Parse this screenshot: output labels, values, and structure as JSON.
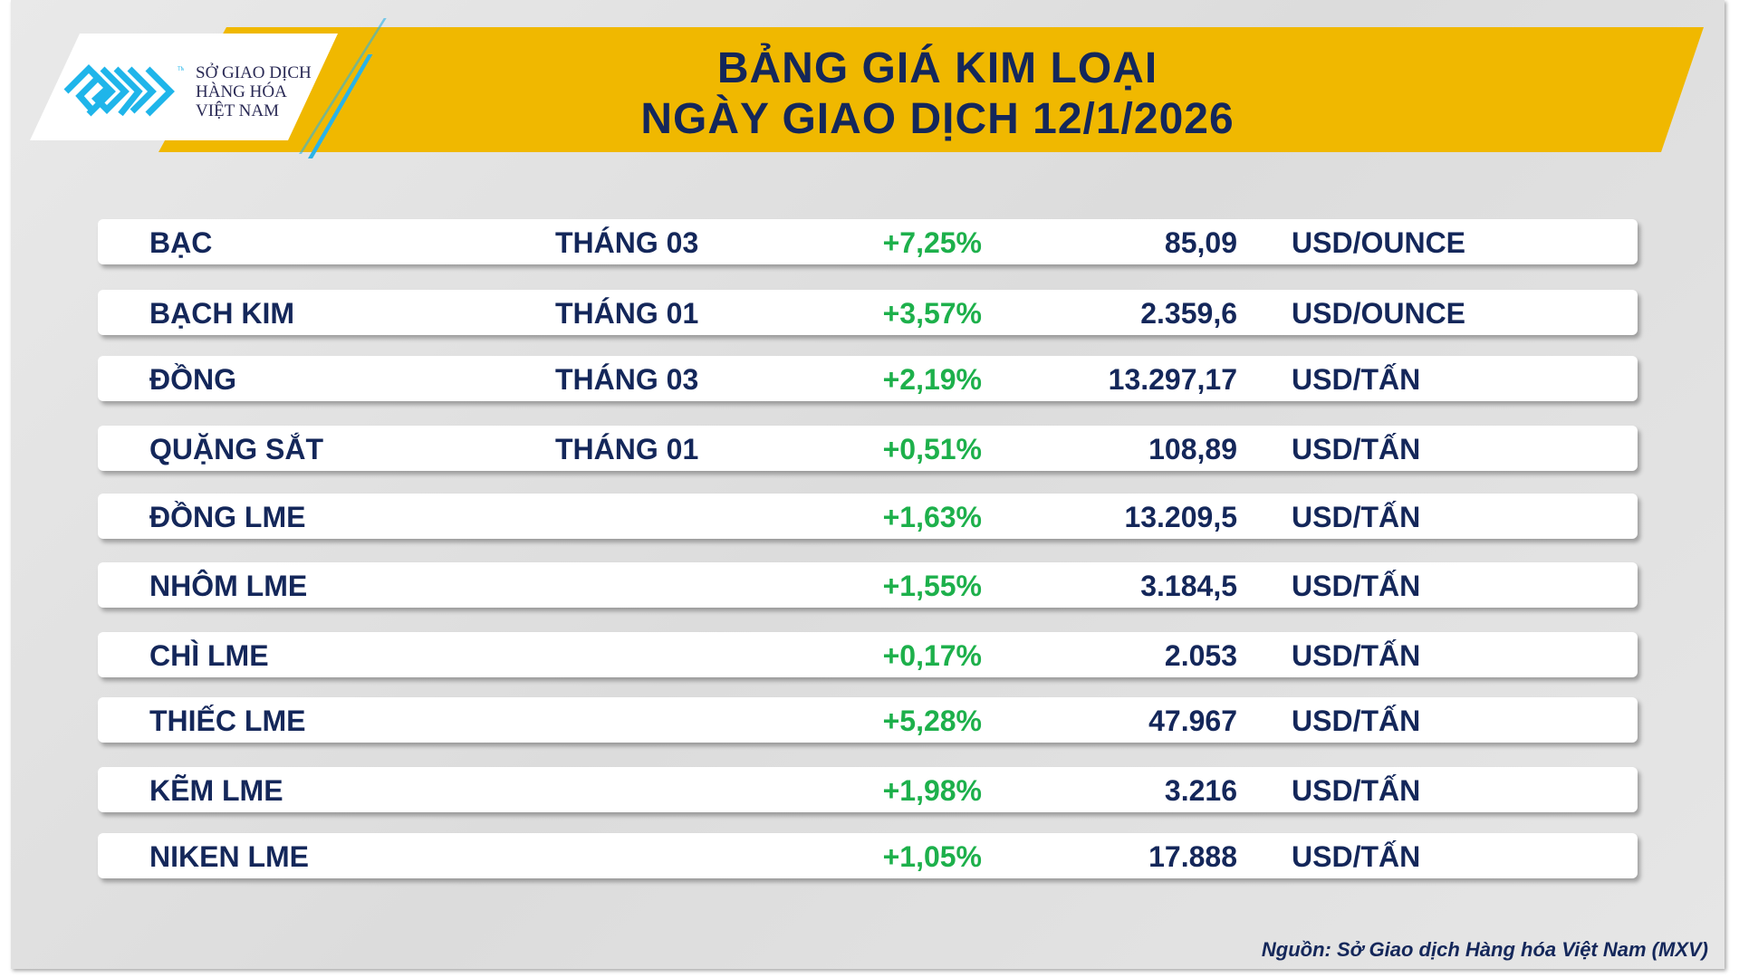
{
  "header": {
    "title_line1": "BẢNG GIÁ KIM LOẠI",
    "title_line2": "NGÀY GIAO DỊCH 12/1/2026"
  },
  "logo": {
    "line1": "SỞ GIAO DỊCH",
    "line2": "HÀNG HÓA",
    "line3": "VIỆT NAM",
    "tm": "TM"
  },
  "colors": {
    "navy": "#14275a",
    "green": "#1db04b",
    "yellow": "#f0b800",
    "logo_blue": "#1fb5ea"
  },
  "rows": [
    {
      "name": "BẠC",
      "month": "THÁNG 03",
      "change": "+7,25%",
      "price": "85,09",
      "unit": "USD/OUNCE"
    },
    {
      "name": "BẠCH KIM",
      "month": "THÁNG 01",
      "change": "+3,57%",
      "price": "2.359,6",
      "unit": "USD/OUNCE"
    },
    {
      "name": "ĐỒNG",
      "month": "THÁNG 03",
      "change": "+2,19%",
      "price": "13.297,17",
      "unit": "USD/TẤN"
    },
    {
      "name": "QUẶNG SẮT",
      "month": "THÁNG 01",
      "change": "+0,51%",
      "price": "108,89",
      "unit": "USD/TẤN"
    },
    {
      "name": "ĐỒNG LME",
      "month": "",
      "change": "+1,63%",
      "price": "13.209,5",
      "unit": "USD/TẤN"
    },
    {
      "name": "NHÔM LME",
      "month": "",
      "change": "+1,55%",
      "price": "3.184,5",
      "unit": "USD/TẤN"
    },
    {
      "name": "CHÌ LME",
      "month": "",
      "change": "+0,17%",
      "price": "2.053",
      "unit": "USD/TẤN"
    },
    {
      "name": "THIẾC LME",
      "month": "",
      "change": "+5,28%",
      "price": "47.967",
      "unit": "USD/TẤN"
    },
    {
      "name": "KẼM LME",
      "month": "",
      "change": "+1,98%",
      "price": "3.216",
      "unit": "USD/TẤN"
    },
    {
      "name": "NIKEN LME",
      "month": "",
      "change": "+1,05%",
      "price": "17.888",
      "unit": "USD/TẤN"
    }
  ],
  "footer": {
    "source": "Nguồn: Sở Giao dịch Hàng hóa Việt Nam (MXV)"
  }
}
